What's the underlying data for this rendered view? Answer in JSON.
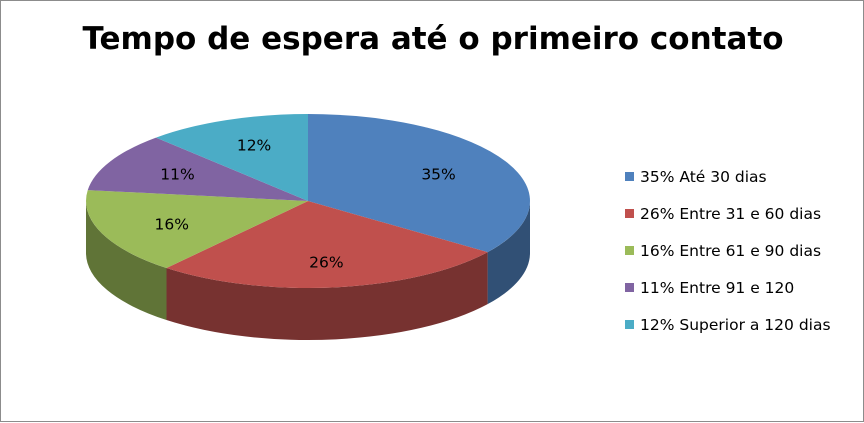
{
  "chart_data": {
    "type": "pie",
    "title": "Tempo de espera até o primeiro contato",
    "slices": [
      {
        "label": "35% Até 30 dias",
        "value": 35,
        "data_label": "35%",
        "color": "#4f81bd"
      },
      {
        "label": "26% Entre 31 e 60 dias",
        "value": 26,
        "data_label": "26%",
        "color": "#c0504d"
      },
      {
        "label": "16% Entre 61 e 90 dias",
        "value": 16,
        "data_label": "16%",
        "color": "#9bbb59"
      },
      {
        "label": "11% Entre 91 e 120",
        "value": 11,
        "data_label": "11%",
        "color": "#8064a2"
      },
      {
        "label": "12% Superior a 120 dias",
        "value": 12,
        "data_label": "12%",
        "color": "#4bacc6"
      }
    ],
    "legend_position": "right",
    "style": "3d-pie"
  }
}
